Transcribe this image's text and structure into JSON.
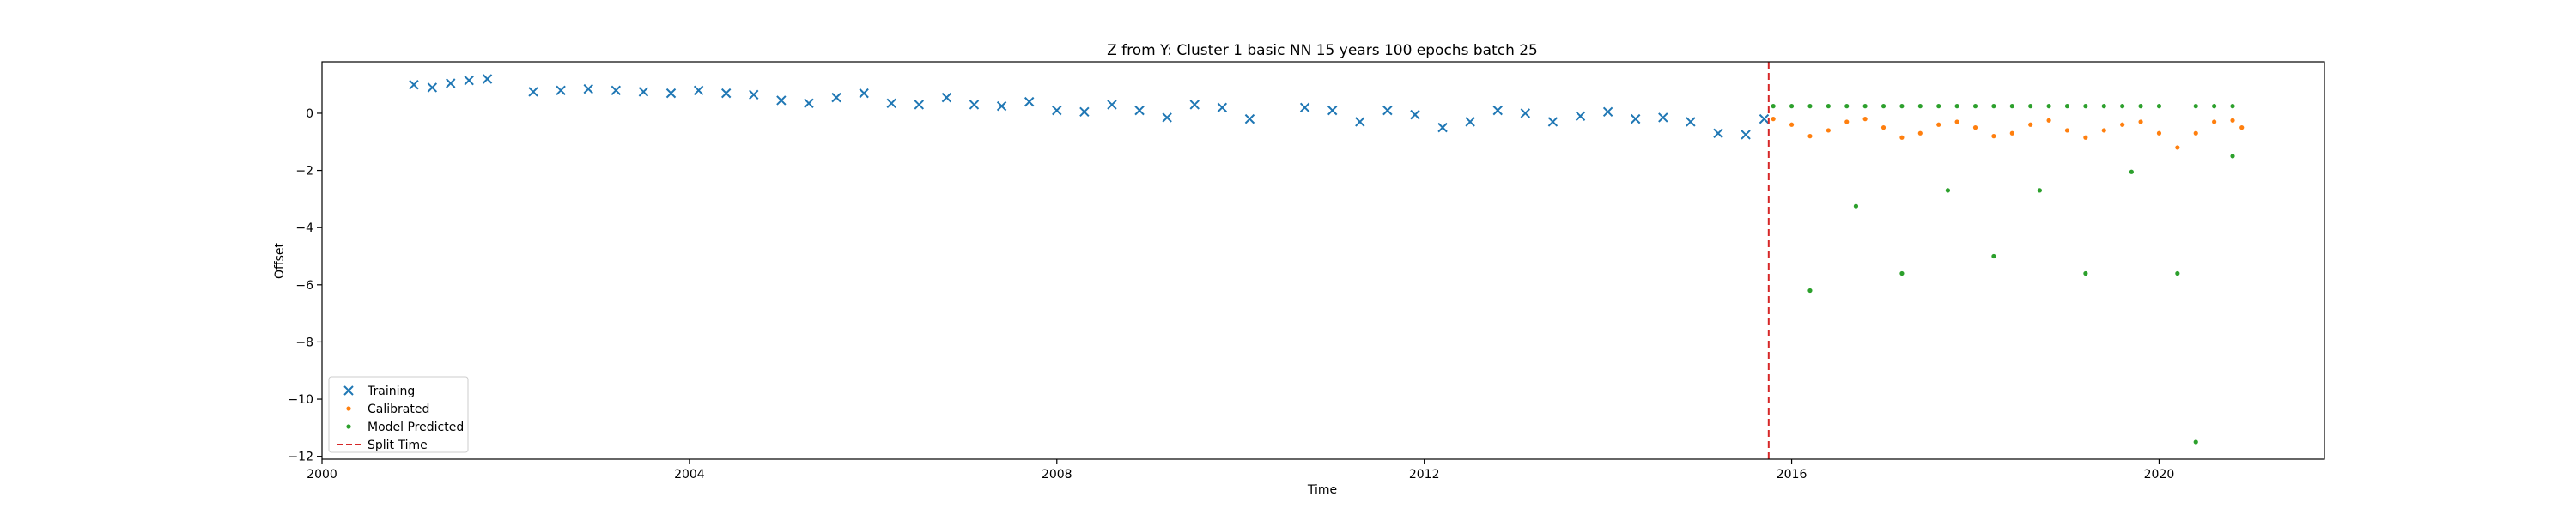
{
  "chart_data": {
    "type": "scatter",
    "title": "Z from Y: Cluster 1 basic NN 15 years 100 epochs batch 25",
    "xlabel": "Time",
    "ylabel": "Offset",
    "xlim": [
      2000.0,
      2021.8
    ],
    "ylim": [
      -12.1,
      1.8
    ],
    "xticks": [
      2000,
      2004,
      2008,
      2012,
      2016,
      2020
    ],
    "xtick_labels": [
      "2000",
      "2004",
      "2008",
      "2012",
      "2016",
      "2020"
    ],
    "yticks": [
      0,
      -2,
      -4,
      -6,
      -8,
      -10,
      -12
    ],
    "ytick_labels": [
      "0",
      "−2",
      "−4",
      "−6",
      "−8",
      "−10",
      "−12"
    ],
    "grid": false,
    "legend_position": "lower-left",
    "split_time": 2015.75,
    "colors": {
      "training": "#1f77b4",
      "calibrated": "#ff7f0e",
      "predicted": "#2ca02c",
      "split": "#d62728"
    },
    "series": [
      {
        "name": "Training",
        "marker": "x",
        "x": [
          2001.0,
          2001.2,
          2001.4,
          2001.6,
          2001.8,
          2002.3,
          2002.6,
          2002.9,
          2003.2,
          2003.5,
          2003.8,
          2004.1,
          2004.4,
          2004.7,
          2005.0,
          2005.3,
          2005.6,
          2005.9,
          2006.2,
          2006.5,
          2006.8,
          2007.1,
          2007.4,
          2007.7,
          2008.0,
          2008.3,
          2008.6,
          2008.9,
          2009.2,
          2009.5,
          2009.8,
          2010.1,
          2010.7,
          2011.0,
          2011.3,
          2011.6,
          2011.9,
          2012.2,
          2012.5,
          2012.8,
          2013.1,
          2013.4,
          2013.7,
          2014.0,
          2014.3,
          2014.6,
          2014.9,
          2015.2,
          2015.5,
          2015.7
        ],
        "y": [
          1.0,
          0.9,
          1.05,
          1.15,
          1.2,
          0.75,
          0.8,
          0.85,
          0.8,
          0.75,
          0.7,
          0.8,
          0.7,
          0.65,
          0.45,
          0.35,
          0.55,
          0.7,
          0.35,
          0.3,
          0.55,
          0.3,
          0.25,
          0.4,
          0.1,
          0.05,
          0.3,
          0.1,
          -0.15,
          0.3,
          0.2,
          -0.2,
          0.2,
          0.1,
          -0.3,
          0.1,
          -0.05,
          -0.5,
          -0.3,
          0.1,
          0.0,
          -0.3,
          -0.1,
          0.05,
          -0.2,
          -0.15,
          -0.3,
          -0.7,
          -0.75,
          -0.2
        ]
      },
      {
        "name": "Calibrated",
        "marker": "dot",
        "x": [
          2015.8,
          2016.0,
          2016.2,
          2016.4,
          2016.6,
          2016.8,
          2017.0,
          2017.2,
          2017.4,
          2017.6,
          2017.8,
          2018.0,
          2018.2,
          2018.4,
          2018.6,
          2018.8,
          2019.0,
          2019.2,
          2019.4,
          2019.6,
          2019.8,
          2020.0,
          2020.2,
          2020.4,
          2020.6,
          2020.8,
          2020.9
        ],
        "y": [
          -0.2,
          -0.4,
          -0.8,
          -0.6,
          -0.3,
          -0.2,
          -0.5,
          -0.85,
          -0.7,
          -0.4,
          -0.3,
          -0.5,
          -0.8,
          -0.7,
          -0.4,
          -0.25,
          -0.6,
          -0.85,
          -0.6,
          -0.4,
          -0.3,
          -0.7,
          -1.2,
          -0.7,
          -0.3,
          -0.25,
          -0.5
        ]
      },
      {
        "name": "Model Predicted",
        "marker": "dot",
        "x": [
          2015.8,
          2016.0,
          2016.2,
          2016.4,
          2016.6,
          2016.8,
          2017.0,
          2017.2,
          2017.4,
          2017.6,
          2017.8,
          2018.0,
          2018.2,
          2018.4,
          2018.6,
          2018.8,
          2019.0,
          2019.2,
          2019.4,
          2019.6,
          2019.8,
          2020.0,
          2020.4,
          2020.6,
          2020.8,
          2016.2,
          2016.7,
          2017.2,
          2017.7,
          2018.2,
          2018.7,
          2019.2,
          2019.7,
          2020.2,
          2020.4,
          2020.8
        ],
        "y": [
          0.25,
          0.25,
          0.25,
          0.25,
          0.25,
          0.25,
          0.25,
          0.25,
          0.25,
          0.25,
          0.25,
          0.25,
          0.25,
          0.25,
          0.25,
          0.25,
          0.25,
          0.25,
          0.25,
          0.25,
          0.25,
          0.25,
          0.25,
          0.25,
          0.25,
          -6.2,
          -3.25,
          -5.6,
          -2.7,
          -5.0,
          -2.7,
          -5.6,
          -2.05,
          -5.6,
          -11.5,
          -1.5
        ]
      }
    ],
    "legend": [
      {
        "label": "Training",
        "key": "training"
      },
      {
        "label": "Calibrated",
        "key": "calibrated"
      },
      {
        "label": "Model Predicted",
        "key": "predicted"
      },
      {
        "label": "Split Time",
        "key": "split"
      }
    ]
  }
}
